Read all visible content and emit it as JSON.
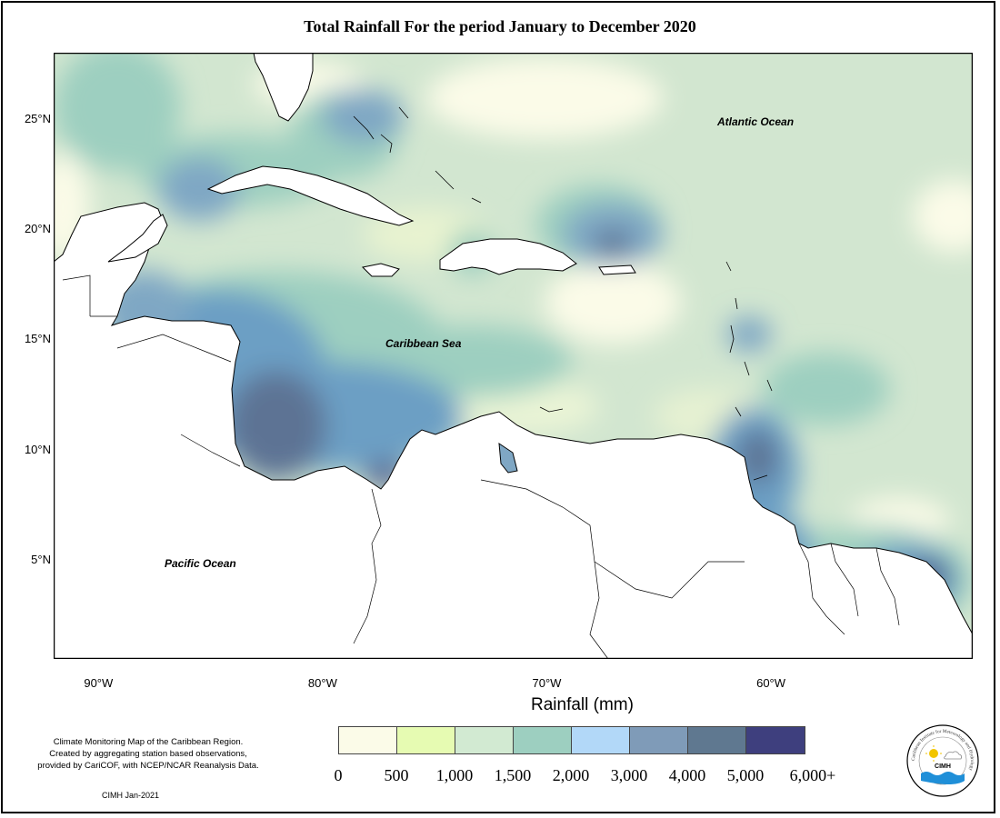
{
  "title": "Total Rainfall For the period January to December 2020",
  "map": {
    "type": "choropleth-rainfall",
    "region": "Caribbean",
    "lon_range": [
      -92,
      -51
    ],
    "lat_range": [
      0.5,
      28
    ],
    "lat_ticks": [
      {
        "value": 25,
        "label": "25°N"
      },
      {
        "value": 20,
        "label": "20°N"
      },
      {
        "value": 15,
        "label": "15°N"
      },
      {
        "value": 10,
        "label": "10°N"
      },
      {
        "value": 5,
        "label": "5°N"
      }
    ],
    "lon_ticks": [
      {
        "value": -90,
        "label": "90°W"
      },
      {
        "value": -80,
        "label": "80°W"
      },
      {
        "value": -70,
        "label": "70°W"
      },
      {
        "value": -60,
        "label": "60°W"
      }
    ],
    "ocean_labels": {
      "atlantic": "Atlantic Ocean",
      "caribbean": "Caribbean Sea",
      "pacific": "Pacific Ocean"
    }
  },
  "legend": {
    "title": "Rainfall (mm)",
    "classes": [
      {
        "color": "#fbfbe8"
      },
      {
        "color": "#e6fbb2"
      },
      {
        "color": "#d2ead2"
      },
      {
        "color": "#9dcfc0"
      },
      {
        "color": "#b2d8f8"
      },
      {
        "color": "#7f9bb8"
      },
      {
        "color": "#5f7890"
      },
      {
        "color": "#3e3f7e"
      }
    ],
    "breaks": [
      "0",
      "500",
      "1,000",
      "1,500",
      "2,000",
      "3,000",
      "4,000",
      "5,000",
      "6,000+"
    ]
  },
  "credit": {
    "line1": "Climate Monitoring Map of the Caribbean Region.",
    "line2": "Created by aggregating station based observations,",
    "line3": "provided by CariCOF, with NCEP/NCAR Reanalysis Data.",
    "stamp": "CIMH  Jan-2021"
  },
  "logo": {
    "label": "CIMH",
    "ring_text": "Caribbean Institute for Meteorology and Hydrology"
  }
}
